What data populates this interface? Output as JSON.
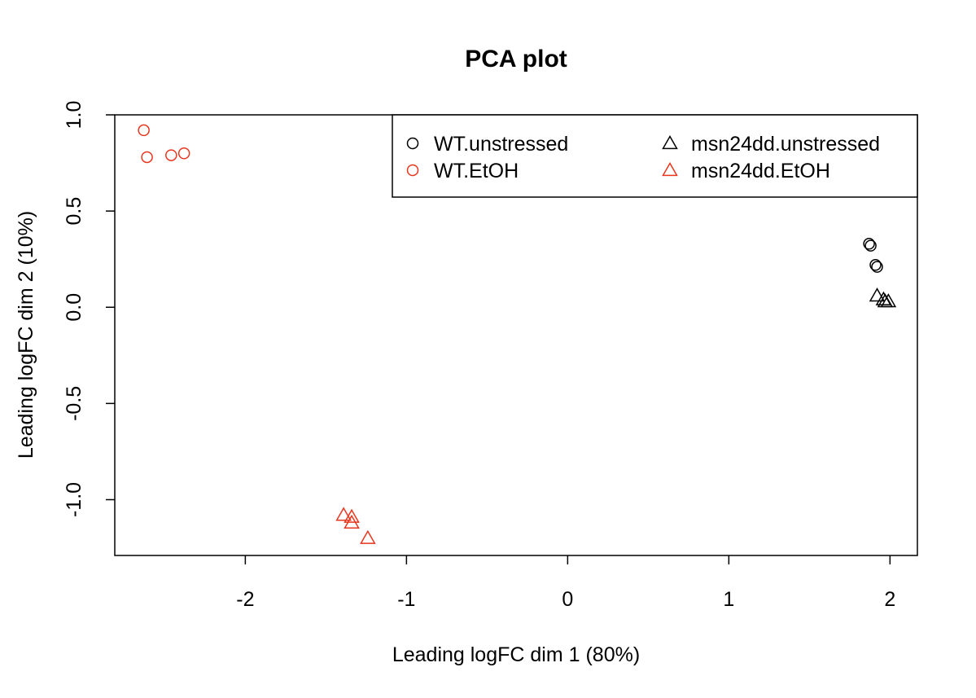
{
  "chart_data": {
    "type": "scatter",
    "title": "PCA plot",
    "xlabel": "Leading logFC dim 1 (80%)",
    "ylabel": "Leading logFC dim 2 (10%)",
    "xlim": [
      -2.81,
      2.17
    ],
    "ylim": [
      -1.29,
      1.0
    ],
    "xticks": [
      -2,
      -1,
      0,
      1,
      2
    ],
    "xtick_labels": [
      "-2",
      "-1",
      "0",
      "1",
      "2"
    ],
    "yticks": [
      -1.0,
      -0.5,
      0.0,
      0.5,
      1.0
    ],
    "ytick_labels": [
      "-1.0",
      "-0.5",
      "0.0",
      "0.5",
      "1.0"
    ],
    "grid": false,
    "legend_position": "top-right",
    "series": [
      {
        "name": "WT.unstressed",
        "marker": "circle",
        "color": "#000000",
        "points": [
          [
            1.87,
            0.33
          ],
          [
            1.88,
            0.32
          ],
          [
            1.91,
            0.22
          ],
          [
            1.92,
            0.21
          ]
        ]
      },
      {
        "name": "WT.EtOH",
        "marker": "circle",
        "color": "#e8361f",
        "points": [
          [
            -2.63,
            0.92
          ],
          [
            -2.61,
            0.78
          ],
          [
            -2.46,
            0.79
          ],
          [
            -2.38,
            0.8
          ]
        ]
      },
      {
        "name": "msn24dd.unstressed",
        "marker": "triangle",
        "color": "#000000",
        "points": [
          [
            1.92,
            0.06
          ],
          [
            1.96,
            0.04
          ],
          [
            1.97,
            0.03
          ],
          [
            1.99,
            0.03
          ]
        ]
      },
      {
        "name": "msn24dd.EtOH",
        "marker": "triangle",
        "color": "#e8361f",
        "points": [
          [
            -1.39,
            -1.08
          ],
          [
            -1.34,
            -1.09
          ],
          [
            -1.34,
            -1.12
          ],
          [
            -1.24,
            -1.2
          ]
        ]
      }
    ]
  }
}
